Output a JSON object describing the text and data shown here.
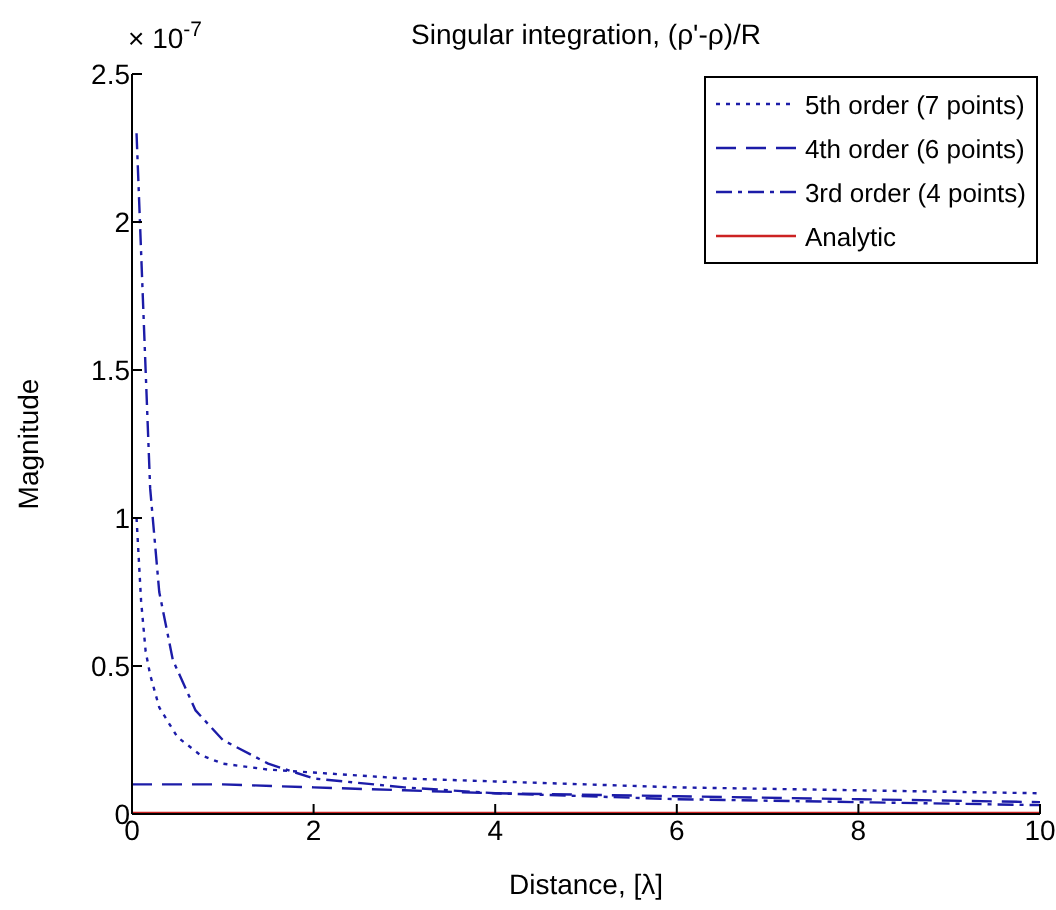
{
  "chart_data": {
    "type": "line",
    "title": "Singular integration, (ρ'-ρ)/R",
    "xlabel": "Distance, [λ]",
    "ylabel": "Magnitude",
    "annotations": [
      "× 10$^{-7}$"
    ],
    "xlim": [
      0,
      10
    ],
    "xticks": [
      0,
      2,
      4,
      6,
      8,
      10
    ],
    "ylim": [
      0,
      2.5
    ],
    "yticks": [
      0,
      0.5,
      1,
      1.5,
      2,
      2.5
    ],
    "grid": false,
    "legend": "top right",
    "marker": "none",
    "series": [
      {
        "name": "5th order (7 points)",
        "color": "#1c1ca8",
        "line_style": "dotted",
        "x": [
          0.05,
          0.1,
          0.15,
          0.2,
          0.3,
          0.5,
          0.75,
          1,
          1.5,
          2,
          3,
          4,
          5,
          6,
          7,
          8,
          9,
          10
        ],
        "values": [
          1.0,
          0.72,
          0.55,
          0.47,
          0.36,
          0.26,
          0.2,
          0.17,
          0.15,
          0.14,
          0.12,
          0.11,
          0.1,
          0.09,
          0.085,
          0.08,
          0.075,
          0.07
        ]
      },
      {
        "name": "4th order (6 points)",
        "color": "#1c1ca8",
        "line_style": "dashed",
        "x": [
          0,
          1,
          2,
          3,
          4,
          6,
          8,
          10
        ],
        "values": [
          0.1,
          0.1,
          0.09,
          0.08,
          0.07,
          0.06,
          0.05,
          0.04
        ]
      },
      {
        "name": "3rd order (4 points)",
        "color": "#1c1ca8",
        "line_style": "dashdot",
        "x": [
          0.05,
          0.1,
          0.15,
          0.2,
          0.3,
          0.45,
          0.7,
          1,
          1.5,
          2,
          3,
          4,
          6,
          8,
          10
        ],
        "values": [
          2.3,
          1.9,
          1.5,
          1.1,
          0.75,
          0.52,
          0.35,
          0.25,
          0.17,
          0.12,
          0.09,
          0.07,
          0.05,
          0.04,
          0.03
        ]
      },
      {
        "name": "Analytic",
        "color": "#cc2222",
        "line_style": "solid",
        "x": [
          0,
          10
        ],
        "values": [
          0,
          0
        ]
      }
    ]
  }
}
